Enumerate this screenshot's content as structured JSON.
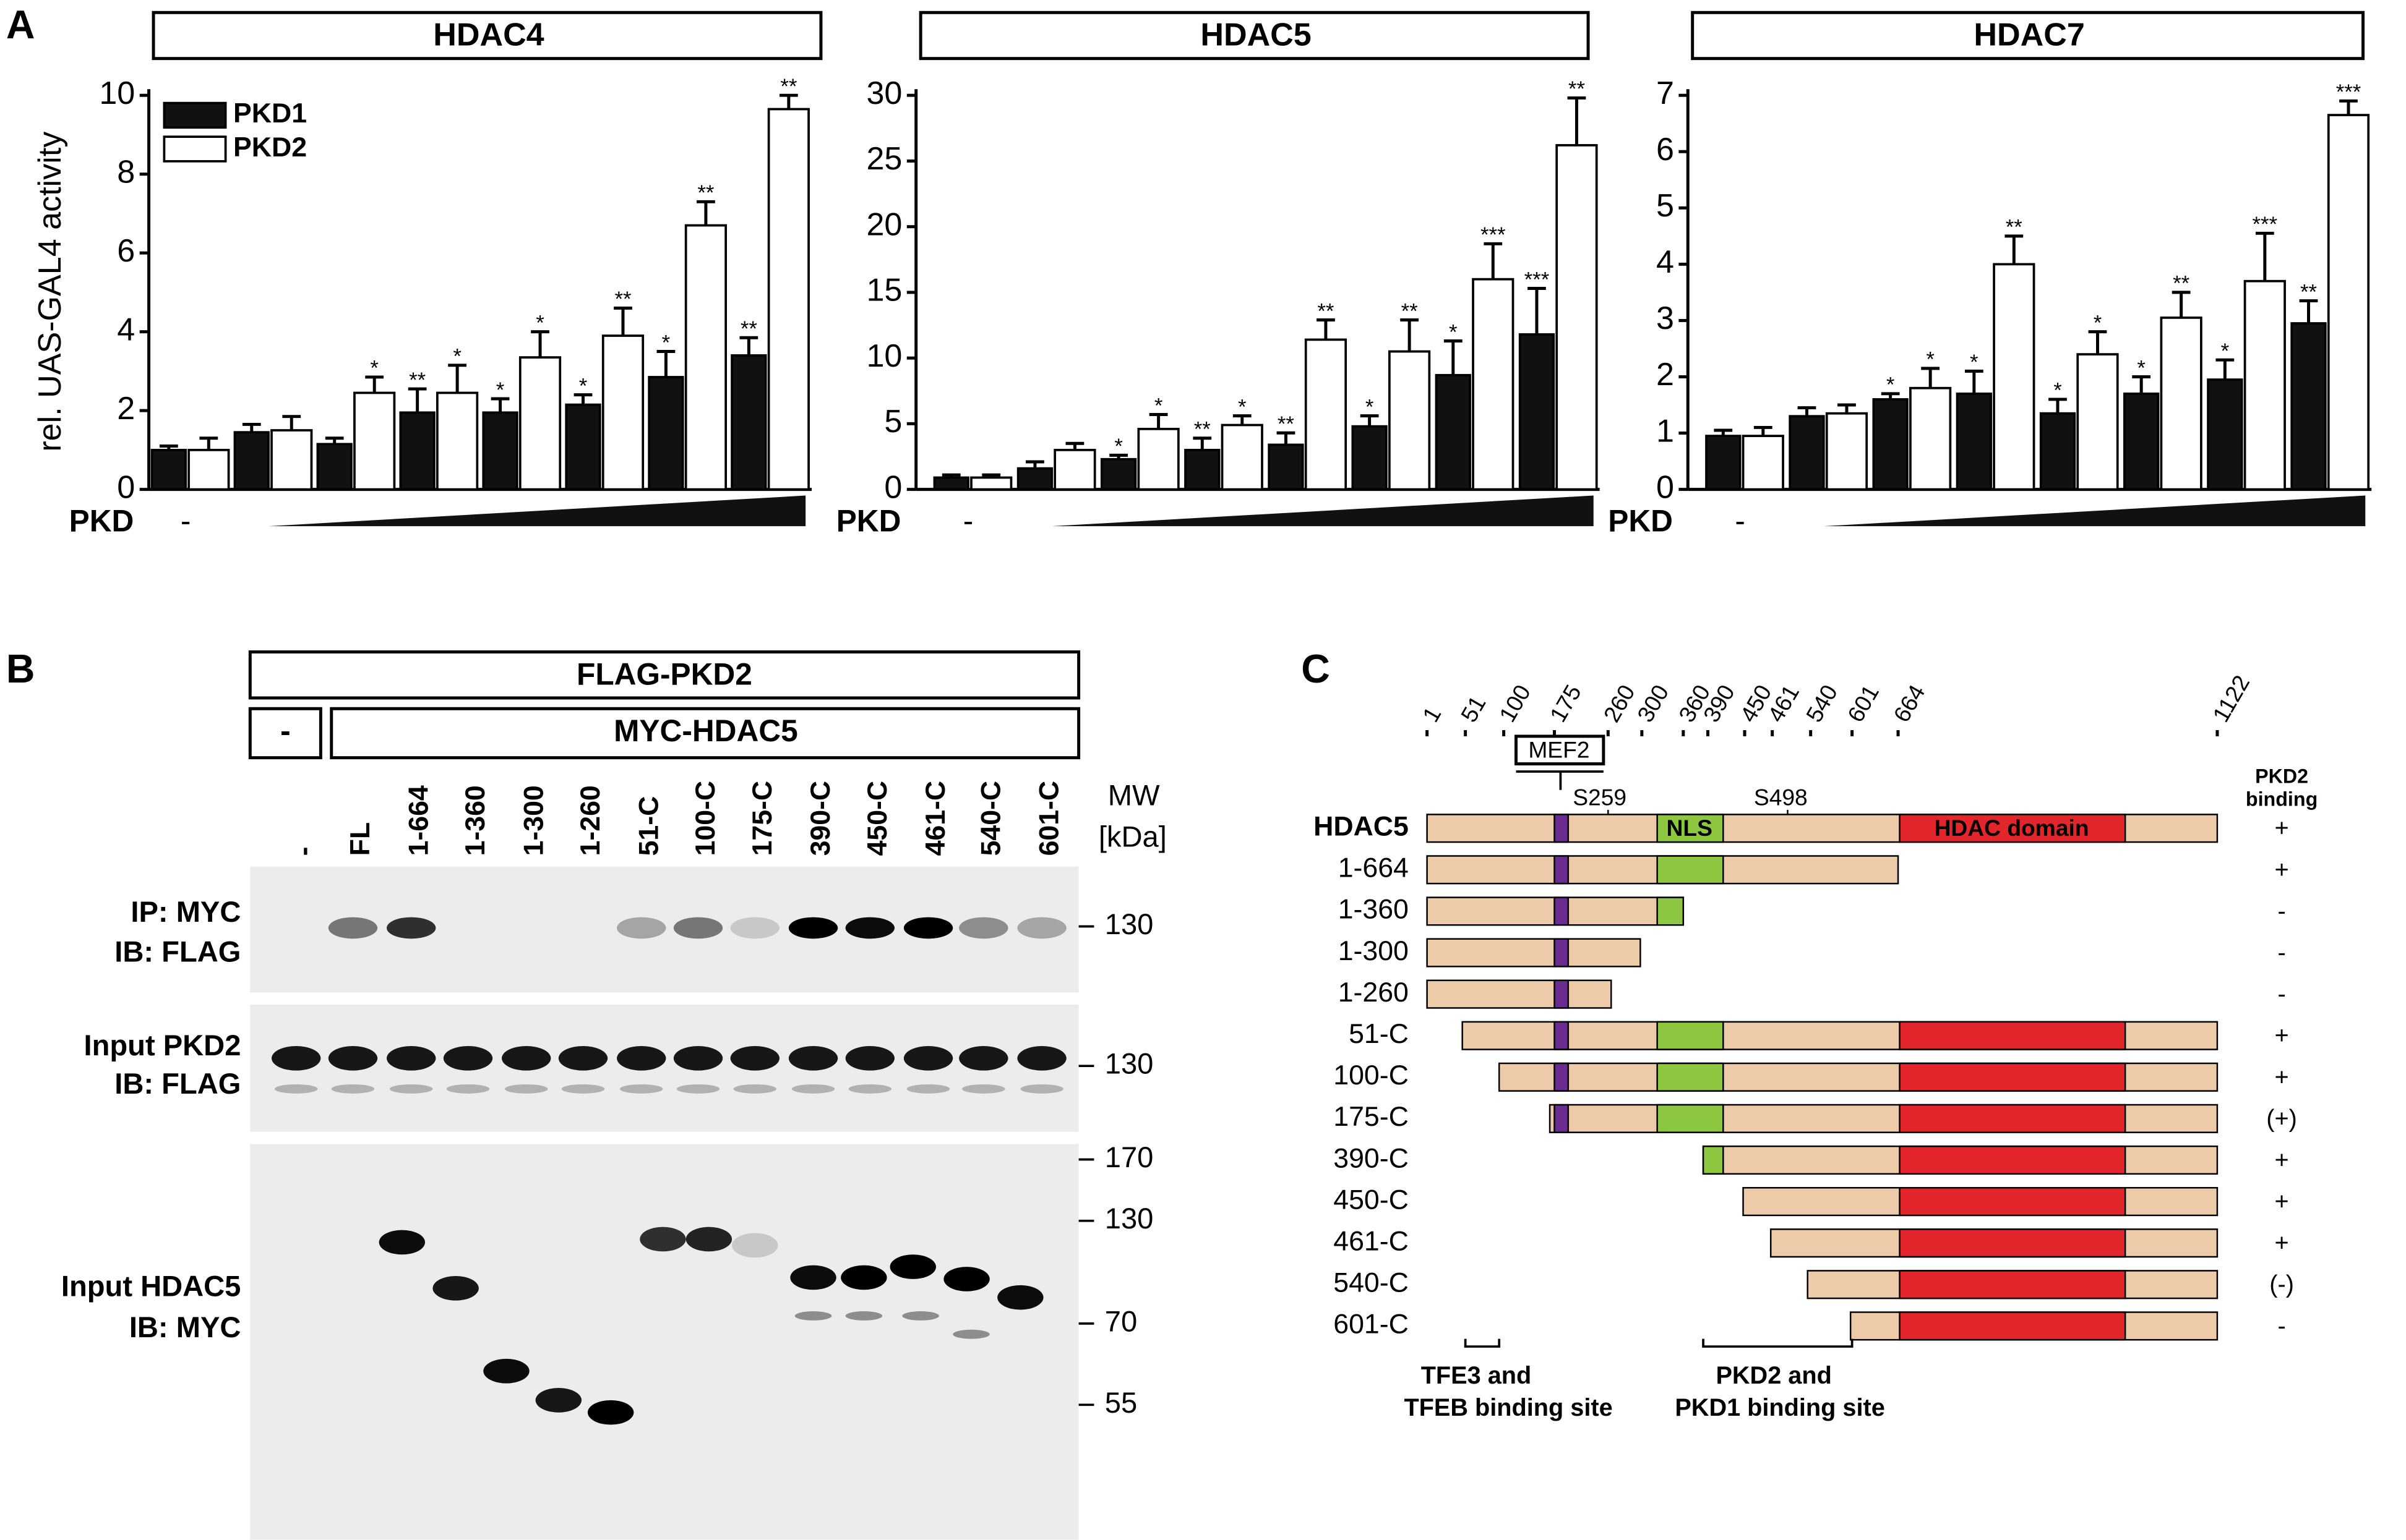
{
  "chart_data": [
    {
      "type": "bar",
      "panel": "A",
      "title": "HDAC4",
      "ylabel": "rel. UAS-GAL4 activity",
      "xlabel": "PKD",
      "legend": "top-left",
      "categories": [
        "-",
        null,
        null,
        null,
        null,
        null,
        null,
        null
      ],
      "ylim": [
        0,
        10
      ],
      "yticks": [
        0,
        2,
        4,
        6,
        8,
        10
      ],
      "series": [
        {
          "name": "PKD1",
          "color": "#111111",
          "values": [
            1.0,
            1.45,
            1.15,
            1.95,
            1.95,
            2.15,
            2.85,
            3.4
          ],
          "errors": [
            0.1,
            0.2,
            0.15,
            0.6,
            0.35,
            0.25,
            0.65,
            0.45
          ],
          "stars": [
            null,
            null,
            null,
            "**",
            "*",
            "*",
            "*",
            "**"
          ]
        },
        {
          "name": "PKD2",
          "color": "#ffffff",
          "values": [
            1.0,
            1.5,
            2.45,
            2.45,
            3.35,
            3.9,
            6.7,
            9.65
          ],
          "errors": [
            0.3,
            0.35,
            0.4,
            0.7,
            0.65,
            0.7,
            0.6,
            0.35
          ],
          "stars": [
            null,
            null,
            "*",
            "*",
            "*",
            "**",
            "**",
            "**"
          ]
        }
      ]
    },
    {
      "type": "bar",
      "title": "HDAC5",
      "xlabel": "PKD",
      "categories": [
        "-",
        null,
        null,
        null,
        null,
        null,
        null,
        null
      ],
      "ylim": [
        0,
        30
      ],
      "yticks": [
        0,
        5,
        10,
        15,
        20,
        25,
        30
      ],
      "series": [
        {
          "color": "#111111",
          "values": [
            0.9,
            1.6,
            2.3,
            3.0,
            3.4,
            4.8,
            8.7,
            11.8
          ],
          "errors": [
            0.2,
            0.5,
            0.3,
            0.9,
            0.9,
            0.8,
            2.6,
            3.5
          ],
          "stars": [
            null,
            null,
            "*",
            "**",
            "**",
            "*",
            "*",
            "***"
          ]
        },
        {
          "color": "#ffffff",
          "values": [
            0.9,
            3.0,
            4.6,
            4.9,
            11.4,
            10.5,
            16.0,
            26.2
          ],
          "errors": [
            0.2,
            0.5,
            1.1,
            0.7,
            1.5,
            2.4,
            2.7,
            3.6
          ],
          "stars": [
            null,
            null,
            "*",
            "*",
            "**",
            "**",
            "***",
            "**"
          ]
        }
      ]
    },
    {
      "type": "bar",
      "title": "HDAC7",
      "xlabel": "PKD",
      "categories": [
        "-",
        null,
        null,
        null,
        null,
        null,
        null,
        null
      ],
      "ylim": [
        0,
        7
      ],
      "yticks": [
        0,
        1,
        2,
        3,
        4,
        5,
        6,
        7
      ],
      "series": [
        {
          "color": "#111111",
          "values": [
            0.95,
            1.3,
            1.6,
            1.7,
            1.35,
            1.7,
            1.95,
            2.95
          ],
          "errors": [
            0.1,
            0.15,
            0.1,
            0.4,
            0.25,
            0.3,
            0.35,
            0.4
          ],
          "stars": [
            null,
            null,
            "*",
            "*",
            "*",
            "*",
            "*",
            "**"
          ]
        },
        {
          "color": "#ffffff",
          "values": [
            0.95,
            1.35,
            1.8,
            4.0,
            2.4,
            3.05,
            3.7,
            6.65
          ],
          "errors": [
            0.15,
            0.15,
            0.35,
            0.5,
            0.4,
            0.45,
            0.85,
            0.25
          ],
          "stars": [
            null,
            null,
            "*",
            "**",
            "*",
            "**",
            "***",
            "***"
          ]
        }
      ]
    }
  ],
  "panel_b": {
    "label": "B",
    "flag": "FLAG-PKD2",
    "neg": "-",
    "myc": "MYC-HDAC5",
    "lanes": [
      "-",
      "FL",
      "1-664",
      "1-360",
      "1-300",
      "1-260",
      "51-C",
      "100-C",
      "175-C",
      "390-C",
      "450-C",
      "461-C",
      "540-C",
      "601-C"
    ],
    "mw": [
      "MW",
      "[kDa]"
    ],
    "rows": [
      [
        "IP: MYC",
        "IB: FLAG"
      ],
      [
        "Input PKD2",
        "IB: FLAG"
      ],
      [
        "Input HDAC5",
        "IB: MYC"
      ]
    ],
    "markers": [
      130,
      130,
      170,
      130,
      70,
      55
    ]
  },
  "panel_c": {
    "label": "C",
    "positions": [
      1,
      51,
      100,
      175,
      260,
      300,
      360,
      390,
      450,
      461,
      540,
      601,
      664,
      1122
    ],
    "mef2": "MEF2",
    "sites": [
      "S259",
      "S498"
    ],
    "nls": "NLS",
    "hdac_domain": "HDAC domain",
    "binding_header": [
      "PKD2",
      "binding"
    ],
    "constructs": [
      {
        "name": "HDAC5",
        "binding": "+"
      },
      {
        "name": "1-664",
        "binding": "+"
      },
      {
        "name": "1-360",
        "binding": "-"
      },
      {
        "name": "1-300",
        "binding": "-"
      },
      {
        "name": "1-260",
        "binding": "-"
      },
      {
        "name": "51-C",
        "binding": "+"
      },
      {
        "name": "100-C",
        "binding": "+"
      },
      {
        "name": "175-C",
        "binding": "(+)"
      },
      {
        "name": "390-C",
        "binding": "+"
      },
      {
        "name": "450-C",
        "binding": "+"
      },
      {
        "name": "461-C",
        "binding": "+"
      },
      {
        "name": "540-C",
        "binding": "(-)"
      },
      {
        "name": "601-C",
        "binding": "-"
      }
    ],
    "notes": [
      [
        "TFE3 and",
        "TFEB binding site"
      ],
      [
        "PKD2 and",
        "PKD1 binding site"
      ]
    ]
  }
}
